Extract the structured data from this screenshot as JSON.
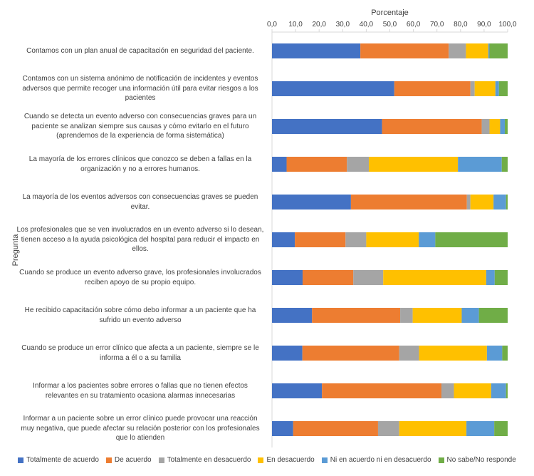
{
  "chart_data": {
    "type": "bar",
    "orientation": "horizontal",
    "stacked": true,
    "title": "",
    "xlabel": "Porcentaje",
    "ylabel": "Pregunta",
    "xlim": [
      0,
      100
    ],
    "xticks": [
      "0,0",
      "10,0",
      "20,0",
      "30,0",
      "40,0",
      "50,0",
      "60,0",
      "70,0",
      "80,0",
      "90,0",
      "100,0"
    ],
    "x_axis_position": "top",
    "grid": false,
    "legend_position": "bottom",
    "categories": [
      "Contamos con un plan anual de capacitación en seguridad del paciente.",
      "Contamos con un sistema anónimo de notificación de incidentes y eventos adversos que permite recoger una información útil para evitar riesgos a los pacientes",
      "Cuando se detecta un evento adverso con consecuencias graves para un paciente se analizan siempre sus causas y cómo evitarlo en el futuro (aprendemos de la experiencia de forma sistemática)",
      "La mayoría de los errores clínicos que conozco se deben a fallas en la organización y no a errores humanos.",
      "La mayoría de los eventos adversos con consecuencias graves se pueden evitar.",
      "Los profesionales que se ven involucrados en un evento adverso si lo desean, tienen acceso a la ayuda psicológica del hospital para reducir el impacto en ellos.",
      "Cuando se produce un evento adverso grave, los profesionales  involucrados reciben apoyo de su propio equipo.",
      "He recibido capacitación sobre cómo debo  informar a un paciente que ha sufrido un evento adverso",
      "Cuando se produce un error clínico que afecta a un paciente, siempre se le informa a él o a su familia",
      "Informar a los pacientes sobre errores o fallas que no tienen efectos relevantes en su tratamiento ocasiona alarmas innecesarias",
      "Informar a un paciente sobre un error clínico puede provocar una reacción muy negativa,  que puede afectar su relación posterior con los profesionales que lo atienden"
    ],
    "series": [
      {
        "name": "Totalmente de acuerdo",
        "color": "#4472C4",
        "values": [
          37.5,
          51.9,
          46.7,
          6.2,
          33.5,
          9.7,
          13.0,
          17.0,
          12.9,
          21.2,
          9.0
        ]
      },
      {
        "name": "De acuerdo",
        "color": "#ED7D31",
        "values": [
          37.5,
          32.3,
          42.3,
          25.6,
          49.2,
          21.5,
          21.5,
          37.4,
          41.1,
          50.7,
          36.0
        ]
      },
      {
        "name": "Totalmente en desacuerdo",
        "color": "#A5A5A5",
        "values": [
          7.3,
          1.8,
          3.3,
          9.3,
          1.5,
          8.8,
          12.7,
          5.3,
          8.4,
          5.3,
          9.0
        ]
      },
      {
        "name": "En desacuerdo",
        "color": "#FFC000",
        "values": [
          9.5,
          8.8,
          4.5,
          37.8,
          9.8,
          22.3,
          43.7,
          20.8,
          28.8,
          15.8,
          28.5
        ]
      },
      {
        "name": "Ni en acuerdo ni en desacuerdo",
        "color": "#5B9BD5",
        "values": [
          0.5,
          1.5,
          2.0,
          18.6,
          5.3,
          7.0,
          3.6,
          7.3,
          6.5,
          6.3,
          11.8
        ]
      },
      {
        "name": "No sabe/No responde",
        "color": "#70AD47",
        "values": [
          7.7,
          3.7,
          1.2,
          2.5,
          0.7,
          30.7,
          5.5,
          12.2,
          2.3,
          0.7,
          5.7
        ]
      }
    ]
  }
}
